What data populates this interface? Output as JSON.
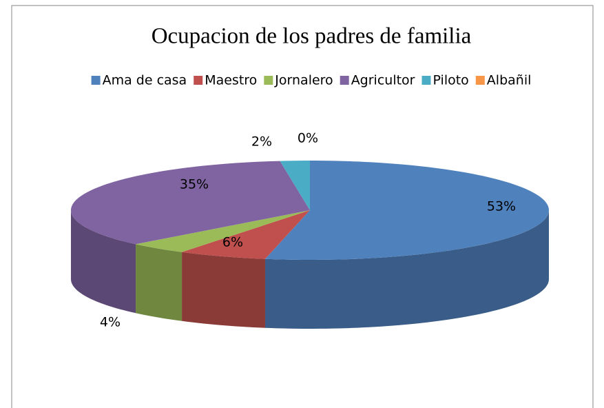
{
  "chart_data": {
    "type": "pie",
    "title": "Ocupacion de los padres de familia",
    "categories": [
      "Ama de casa",
      "Maestro",
      "Jornalero",
      "Agricultor",
      "Piloto",
      "Albañil"
    ],
    "values": [
      53,
      6,
      4,
      35,
      2,
      0
    ],
    "value_labels": [
      "53%",
      "6%",
      "4%",
      "35%",
      "2%",
      "0%"
    ],
    "colors": [
      "#4f81bd",
      "#c0504d",
      "#9bbb59",
      "#8064a2",
      "#4bacc6",
      "#f79646"
    ],
    "legend": "top"
  }
}
